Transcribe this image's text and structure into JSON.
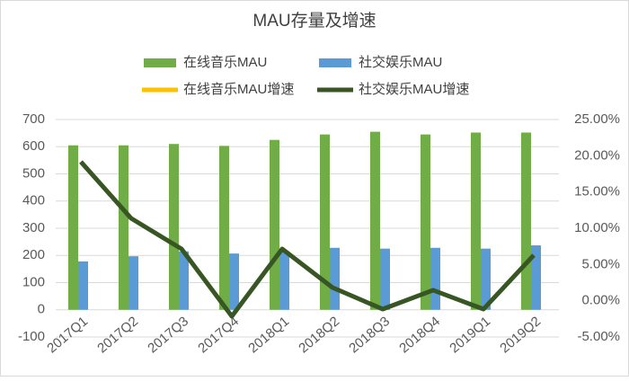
{
  "chart_data": {
    "type": "bar",
    "title": "MAU存量及增速",
    "categories": [
      "2017Q1",
      "2017Q2",
      "2017Q3",
      "2017Q4",
      "2018Q1",
      "2018Q2",
      "2018Q3",
      "2018Q4",
      "2019Q1",
      "2019Q2"
    ],
    "series": [
      {
        "name": "在线音乐MAU",
        "color": "#70ad47",
        "values": [
          605,
          605,
          610,
          603,
          625,
          645,
          655,
          645,
          652,
          652
        ]
      },
      {
        "name": "社交娱乐MAU",
        "color": "#5b9bd5",
        "values": [
          178,
          197,
          215,
          207,
          215,
          228,
          225,
          228,
          225,
          237
        ]
      },
      {
        "name": "在线音乐MAU增速",
        "color": "#ffc000",
        "axis": "y2",
        "values": [
          null,
          null,
          null,
          null,
          null,
          null,
          null,
          null,
          null,
          null
        ]
      },
      {
        "name": "社交娱乐MAU增速",
        "color": "#375623",
        "axis": "y2",
        "values": [
          19.17,
          11.36,
          7.15,
          -2.15,
          7.15,
          1.82,
          -1.16,
          1.45,
          -1.16,
          6.28
        ]
      }
    ],
    "ylim": [
      -100,
      700
    ],
    "yticks": [
      -100,
      0,
      100,
      200,
      300,
      400,
      500,
      600,
      700
    ],
    "y2lim": [
      -5,
      25
    ],
    "y2ticks": [
      {
        "value": -5,
        "label": "-5.00%"
      },
      {
        "value": 0,
        "label": "0.00%"
      },
      {
        "value": 5,
        "label": "5.00%"
      },
      {
        "value": 10,
        "label": "10.00%"
      },
      {
        "value": 15,
        "label": "15.00%"
      },
      {
        "value": 20,
        "label": "20.00%"
      },
      {
        "value": 25,
        "label": "25.00%"
      }
    ],
    "grid": true
  }
}
